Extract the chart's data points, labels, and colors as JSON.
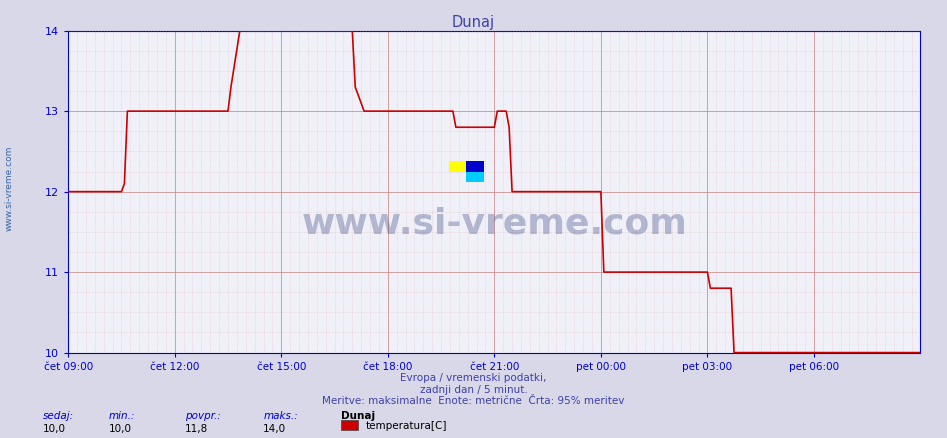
{
  "title": "Dunaj",
  "title_color": "#4040aa",
  "bg_color": "#d8d8e8",
  "plot_bg_color": "#f0f0f8",
  "grid_color_major": "#cc8888",
  "grid_color_minor": "#ddaaaa",
  "line_color": "#cc0000",
  "axis_color": "#0000cc",
  "xlim_start": 0,
  "xlim_end": 288,
  "ylim": [
    10.0,
    14.0
  ],
  "yticks": [
    10,
    11,
    12,
    13,
    14
  ],
  "xtick_labels": [
    "čet 09:00",
    "čet 12:00",
    "čet 15:00",
    "čet 18:00",
    "čet 21:00",
    "pet 00:00",
    "pet 03:00",
    "pet 06:00"
  ],
  "xtick_positions": [
    0,
    36,
    72,
    108,
    144,
    180,
    216,
    252
  ],
  "footer_line1": "Evropa / vremenski podatki,",
  "footer_line2": "zadnji dan / 5 minut.",
  "footer_line3": "Meritve: maksimalne  Enote: metrične  Črta: 95% meritev",
  "footer_color": "#4040aa",
  "sidebar_text": "www.si-vreme.com",
  "sidebar_color": "#3366aa",
  "stats_labels": [
    "sedaj:",
    "min.:",
    "povpr.:",
    "maks.:"
  ],
  "stats_values": [
    "10,0",
    "10,0",
    "11,8",
    "14,0"
  ],
  "legend_station": "Dunaj",
  "legend_label": "temperatura[C]",
  "legend_color": "#cc0000",
  "watermark_text": "www.si-vreme.com",
  "temperature_data": [
    [
      0,
      12.0
    ],
    [
      18,
      12.0
    ],
    [
      19,
      12.1
    ],
    [
      20,
      13.0
    ],
    [
      54,
      13.0
    ],
    [
      55,
      13.3
    ],
    [
      58,
      14.0
    ],
    [
      96,
      14.0
    ],
    [
      97,
      13.3
    ],
    [
      100,
      13.0
    ],
    [
      108,
      13.0
    ],
    [
      130,
      13.0
    ],
    [
      131,
      12.8
    ],
    [
      144,
      12.8
    ],
    [
      145,
      13.0
    ],
    [
      148,
      13.0
    ],
    [
      149,
      12.8
    ],
    [
      150,
      12.0
    ],
    [
      180,
      12.0
    ],
    [
      181,
      11.0
    ],
    [
      215,
      11.0
    ],
    [
      216,
      11.0
    ],
    [
      217,
      10.8
    ],
    [
      224,
      10.8
    ],
    [
      225,
      10.0
    ],
    [
      288,
      10.0
    ]
  ],
  "max_line_y": 14.0,
  "total_points": 288
}
